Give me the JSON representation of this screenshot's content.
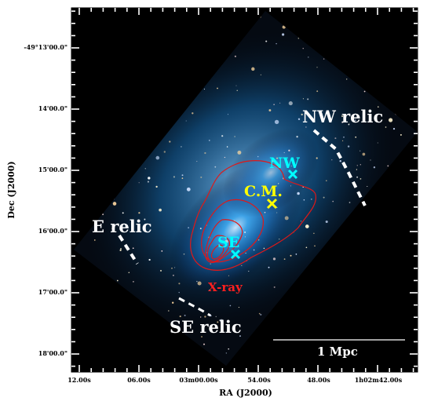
{
  "axes": {
    "xlabel": "RA (J2000)",
    "ylabel": "Dec (J2000)",
    "xticks": [
      "12.00s",
      "06.00s",
      "03m00.00s",
      "54.00s",
      "48.00s",
      "1h02m42.00s"
    ],
    "yticks": [
      "-49°13'00.0\"",
      "14'00.0\"",
      "15'00.0\"",
      "16'00.0\"",
      "17'00.0\"",
      "18'00.0\""
    ]
  },
  "annotations": {
    "nw_relic": "NW relic",
    "e_relic": "E relic",
    "se_relic": "SE relic",
    "nw": "NW",
    "cm": "C.M.",
    "se": "SE",
    "xray": "X-ray",
    "scalebar": "1 Mpc"
  },
  "colors": {
    "background": "#000000",
    "cluster_glow": "#1a8fe0",
    "xray_contours": "#e01818",
    "markers_cyan": "#00ffff",
    "marker_yellow": "#ffff00",
    "relic_dashes": "#ffffff"
  }
}
